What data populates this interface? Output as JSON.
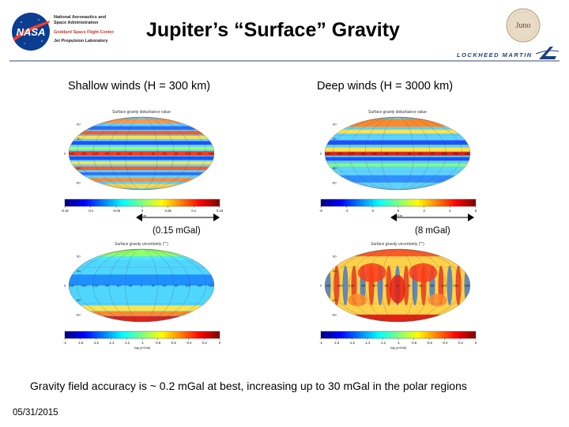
{
  "header": {
    "agency": [
      "National Aeronautics and",
      "Space Administration"
    ],
    "goddard": "Goddard Space Flight Center",
    "jpl": "Jet Propulsion Laboratory",
    "title": "Jupiter’s “Surface” Gravity",
    "juno_logo": "Juno",
    "nasa_logo": "NASA",
    "lm_logo": "LOCKHEED MARTIN"
  },
  "columns": {
    "left_heading": "Shallow winds (H = 300 km)",
    "right_heading": "Deep winds  (H = 3000 km)"
  },
  "maps": {
    "tl_title": "Surface gravity disturbance value",
    "tr_title": "Surface gravity disturbance value",
    "bl_title": "Surface gravity uncertainty (′′′′)",
    "br_title": "Surface gravity uncertainty (′′′′)",
    "lon_ticks": [
      "180",
      "-150",
      "-120",
      "-90",
      "-60",
      "-30",
      "0",
      "30",
      "60",
      "90",
      "120",
      "150",
      "180"
    ],
    "lat_ticks": [
      "60",
      "30",
      "0",
      "-30",
      "-60"
    ],
    "tl_scale": [
      "-0.15",
      "-0.1",
      "-0.05",
      "0",
      "0.05",
      "0.1",
      "0.15"
    ],
    "tr_scale": [
      "-6",
      "-4",
      "-2",
      "0",
      "2",
      "4",
      "6"
    ],
    "bl_scale": [
      "-2",
      "-1.8",
      "-1.6",
      "-1.4",
      "-1.2",
      "-1",
      "-0.8",
      "-0.6",
      "-0.4",
      "-0.2",
      "0"
    ],
    "br_scale": [
      "-2",
      "-1.8",
      "-1.6",
      "-1.4",
      "-1.2",
      "-1",
      "-0.8",
      "-0.6",
      "-0.4",
      "-0.2",
      "0"
    ],
    "unit_top": "mGal",
    "unit_bottom": "log₁₀(mGal)"
  },
  "annotations": {
    "left": "(0.15 mGal)",
    "right": "(8 mGal)"
  },
  "caption": "Gravity field accuracy is ~ 0.2 mGal at best, increasing up to 30 mGal in the polar regions",
  "footer": {
    "date": "05/31/2015"
  },
  "colors": {
    "title": "#000000",
    "rule": "#9aa3b5",
    "nasa_blue": "#0b3d91",
    "nasa_red": "#fc3d21",
    "lm_blue": "#1f3f7a"
  }
}
